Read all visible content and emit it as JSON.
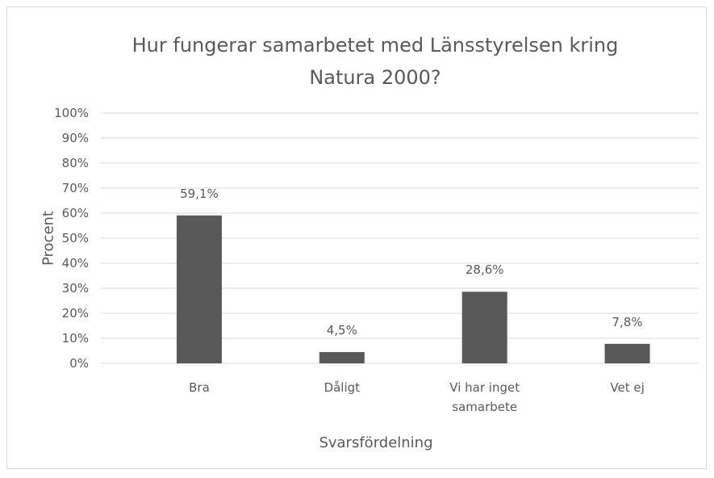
{
  "chart_data": {
    "type": "bar",
    "title": "Hur fungerar samarbetet med Länsstyrelsen kring Natura 2000?",
    "x_label": "Svarsfördelning",
    "y_label": "Procent",
    "categories": [
      "Bra",
      "Dåligt",
      "Vi har inget samarbete",
      "Vet ej"
    ],
    "values": [
      59.1,
      4.5,
      28.6,
      7.8
    ],
    "value_labels": [
      "59,1%",
      "4,5%",
      "28,6%",
      "7,8%"
    ],
    "color": "#595959",
    "ylim": [
      0,
      100
    ],
    "yticks": [
      {
        "value": 0,
        "label": "0%"
      },
      {
        "value": 10,
        "label": "10%"
      },
      {
        "value": 20,
        "label": "20%"
      },
      {
        "value": 30,
        "label": "30%"
      },
      {
        "value": 40,
        "label": "40%"
      },
      {
        "value": 50,
        "label": "50%"
      },
      {
        "value": 60,
        "label": "60%"
      },
      {
        "value": 70,
        "label": "70%"
      },
      {
        "value": 80,
        "label": "80%"
      },
      {
        "value": 90,
        "label": "90%"
      },
      {
        "value": 100,
        "label": "100%"
      }
    ],
    "grid": true
  }
}
